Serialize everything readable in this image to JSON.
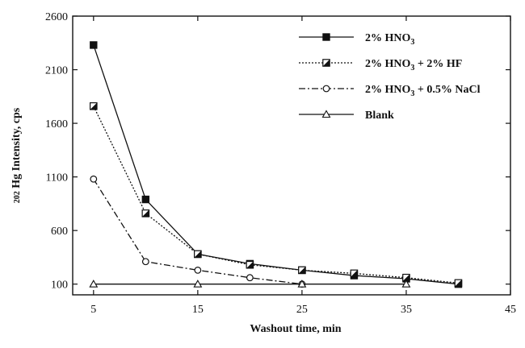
{
  "chart_data": {
    "type": "line",
    "title": "",
    "xlabel": "Washout time, min",
    "ylabel": {
      "prefix": "202",
      "main": "Hg Intensity, cps"
    },
    "xlim": [
      3,
      45
    ],
    "ylim": [
      0,
      2600
    ],
    "xticks": [
      5,
      15,
      25,
      35,
      45
    ],
    "yticks": [
      100,
      600,
      1100,
      1600,
      2100,
      2600
    ],
    "legend_position": "top-right",
    "series": [
      {
        "name": "2% HNO3",
        "label_parts": [
          [
            "2% HNO",
            ""
          ],
          [
            "3",
            "sub"
          ]
        ],
        "marker": "square-filled",
        "dash": "",
        "x": [
          5,
          10,
          15,
          20,
          25,
          30,
          35,
          40
        ],
        "y": [
          2330,
          890,
          380,
          290,
          230,
          180,
          150,
          100
        ]
      },
      {
        "name": "2% HNO3 + 2% HF",
        "label_parts": [
          [
            "2% HNO",
            ""
          ],
          [
            "3",
            "sub"
          ],
          [
            " + 2% HF",
            ""
          ]
        ],
        "marker": "square-half",
        "dash": "2,2",
        "x": [
          5,
          10,
          15,
          20,
          25,
          30,
          35,
          40
        ],
        "y": [
          1760,
          760,
          380,
          280,
          230,
          200,
          160,
          110
        ]
      },
      {
        "name": "2% HNO3 + 0.5% NaCl",
        "label_parts": [
          [
            "2% HNO",
            ""
          ],
          [
            "3",
            "sub"
          ],
          [
            " + 0.5% NaCl",
            ""
          ]
        ],
        "marker": "circle-open",
        "dash": "8,3,2,3",
        "x": [
          5,
          10,
          15,
          20,
          25
        ],
        "y": [
          1080,
          310,
          230,
          160,
          100
        ]
      },
      {
        "name": "Blank",
        "label_parts": [
          [
            "Blank",
            ""
          ]
        ],
        "marker": "triangle-open",
        "dash": "",
        "x": [
          5,
          15,
          25,
          35
        ],
        "y": [
          100,
          100,
          100,
          100
        ]
      }
    ]
  }
}
